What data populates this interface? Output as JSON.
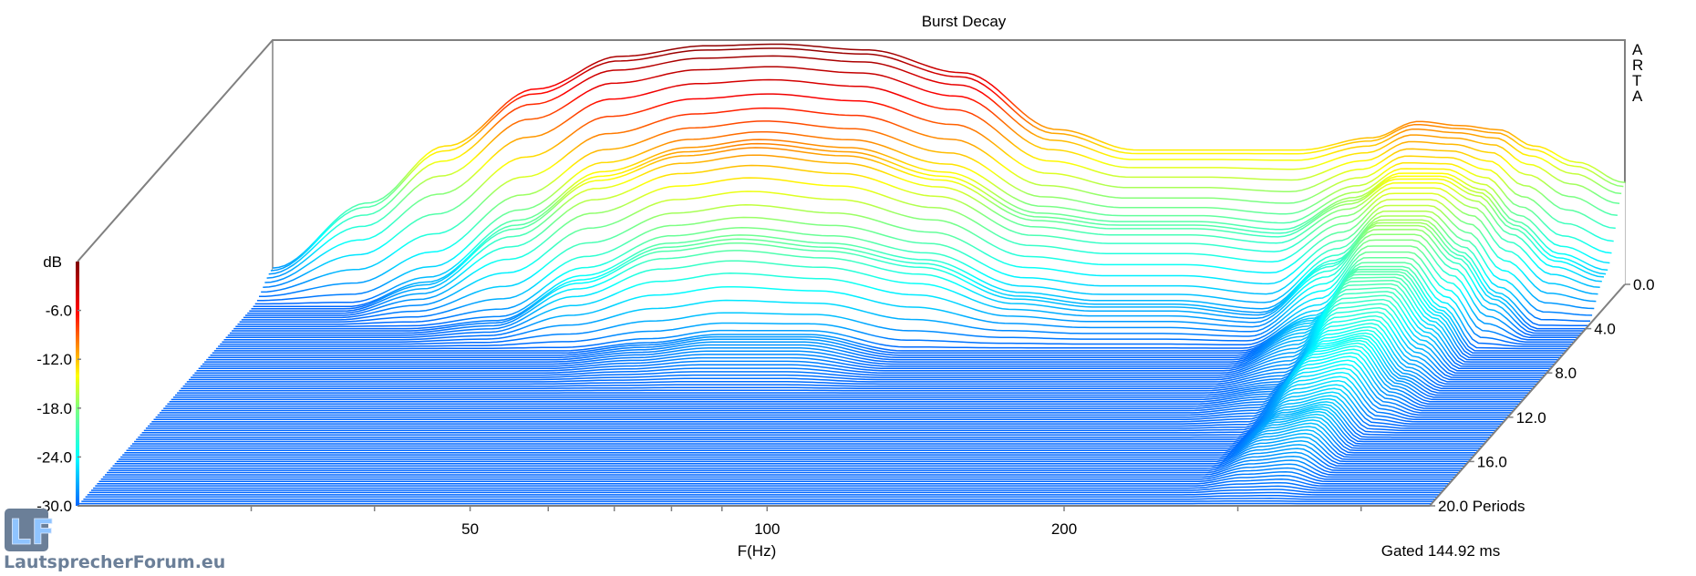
{
  "chart_data": {
    "type": "waterfall",
    "title": "Burst Decay",
    "xlabel": "F(Hz)",
    "xscale": "log",
    "xlim": [
      20,
      470
    ],
    "x_tick_labels": [
      {
        "value": 50,
        "label": "50"
      },
      {
        "value": 100,
        "label": "100"
      },
      {
        "value": 200,
        "label": "200"
      }
    ],
    "x_minor_ticks": [
      30,
      40,
      60,
      70,
      80,
      90,
      300,
      400
    ],
    "zlabel": "dB",
    "zlim": [
      -30,
      0
    ],
    "z_tick_labels": [
      "-6.0",
      "-12.0",
      "-18.0",
      "-24.0",
      "-30.0"
    ],
    "z_ticks": [
      -6,
      -12,
      -18,
      -24,
      -30
    ],
    "ylabel": "Periods",
    "ylim": [
      0,
      20
    ],
    "y_ticks": [
      0,
      4,
      8,
      12,
      16,
      20
    ],
    "y_tick_labels": [
      "0.0",
      "4.0",
      "8.0",
      "12.0",
      "16.0",
      "20.0 Periods"
    ],
    "colormap": [
      {
        "db": -30,
        "color": "#0066ff"
      },
      {
        "db": -24,
        "color": "#00ffff"
      },
      {
        "db": -18,
        "color": "#7fff7f"
      },
      {
        "db": -14,
        "color": "#ffff00"
      },
      {
        "db": -10,
        "color": "#ff8000"
      },
      {
        "db": -6,
        "color": "#ff0000"
      },
      {
        "db": 0,
        "color": "#800000"
      }
    ],
    "frequencies_hz": [
      20,
      25,
      30,
      37,
      45,
      55,
      65,
      80,
      100,
      125,
      150,
      180,
      220,
      260,
      290,
      320,
      350,
      380,
      420,
      470
    ],
    "periods": [
      0,
      2,
      4,
      6,
      10,
      14,
      20
    ],
    "levels_db": [
      [
        -28,
        -20,
        -13,
        -6,
        -2,
        -0.7,
        -0.5,
        -1.2,
        -4,
        -11,
        -13.5,
        -13.5,
        -13.5,
        -12,
        -10,
        -10.5,
        -11,
        -13,
        -15,
        -17.5
      ],
      [
        -30,
        -30,
        -27,
        -20,
        -14,
        -11,
        -10,
        -11,
        -14,
        -19,
        -20,
        -20,
        -21,
        -17,
        -14,
        -14,
        -16,
        -20,
        -24,
        -26
      ],
      [
        -30,
        -30,
        -30,
        -29,
        -24,
        -20,
        -19,
        -20,
        -22,
        -26,
        -27,
        -27,
        -28,
        -22,
        -17,
        -17,
        -21,
        -26,
        -30,
        -30
      ],
      [
        -30,
        -30,
        -30,
        -30,
        -30,
        -29,
        -28,
        -28,
        -30,
        -30,
        -30,
        -30,
        -30,
        -26,
        -20,
        -20,
        -25,
        -30,
        -30,
        -30
      ],
      [
        -30,
        -30,
        -30,
        -30,
        -30,
        -30,
        -30,
        -30,
        -30,
        -30,
        -30,
        -30,
        -30,
        -29,
        -24,
        -23,
        -28,
        -30,
        -30,
        -30
      ],
      [
        -30,
        -30,
        -30,
        -30,
        -30,
        -30,
        -30,
        -30,
        -30,
        -30,
        -30,
        -30,
        -30,
        -30,
        -27,
        -26,
        -30,
        -30,
        -30,
        -30
      ],
      [
        -30,
        -30,
        -30,
        -30,
        -30,
        -30,
        -30,
        -30,
        -30,
        -30,
        -30,
        -30,
        -30,
        -30,
        -30,
        -30,
        -30,
        -30,
        -30,
        -30
      ]
    ],
    "annotation": "Gated 144.92 ms",
    "watermark": "ARTA"
  },
  "logo": {
    "text": "LautsprecherForum.eu",
    "mark": "LF"
  }
}
